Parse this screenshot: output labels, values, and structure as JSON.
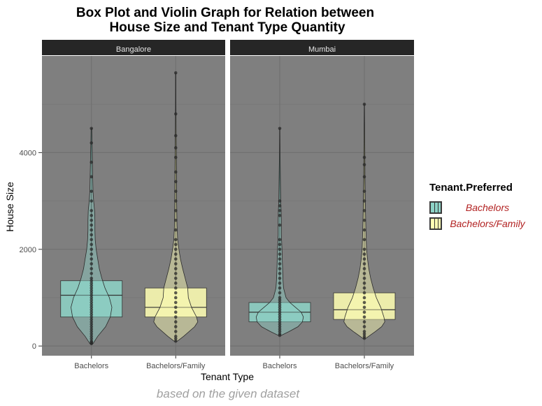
{
  "title_line1": "Box Plot and Violin Graph for Relation between",
  "title_line2": "House Size and Tenant Type Quantity",
  "caption": "based on the given dataset",
  "legend": {
    "title": "Tenant.Preferred",
    "items": [
      {
        "label": "Bachelors",
        "color": "#8dd3c7"
      },
      {
        "label": "Bachelors/Family",
        "color": "#ffffb3"
      }
    ]
  },
  "chart_data": {
    "type": "box+violin",
    "title": "Box Plot and Violin Graph for Relation between House Size and Tenant Type Quantity",
    "xlabel": "Tenant Type",
    "ylabel": "House Size",
    "ylim": [
      -200,
      6000
    ],
    "yticks": [
      0,
      2000,
      4000
    ],
    "categories": [
      "Bachelors",
      "Bachelors/Family"
    ],
    "panel_background": "#7f7f7f",
    "strip_background": "#262626",
    "facets": [
      {
        "name": "Bangalore",
        "groups": [
          {
            "category": "Bachelors",
            "color": "#8dd3c7",
            "box": {
              "q1": 600,
              "median": 1050,
              "q3": 1350,
              "whisker_low": 50,
              "whisker_high": 4500
            },
            "density": [
              [
                50,
                0.05
              ],
              [
                200,
                0.2
              ],
              [
                400,
                0.45
              ],
              [
                600,
                0.6
              ],
              [
                800,
                0.65
              ],
              [
                1000,
                0.57
              ],
              [
                1200,
                0.43
              ],
              [
                1400,
                0.33
              ],
              [
                1600,
                0.25
              ],
              [
                1800,
                0.2
              ],
              [
                2000,
                0.15
              ],
              [
                2200,
                0.12
              ],
              [
                2400,
                0.11
              ],
              [
                2600,
                0.11
              ],
              [
                2800,
                0.1
              ],
              [
                3000,
                0.07
              ],
              [
                3200,
                0.05
              ],
              [
                3500,
                0.04
              ],
              [
                4000,
                0.025
              ],
              [
                4500,
                0.01
              ]
            ],
            "points": [
              50,
              60,
              80,
              100,
              150,
              200,
              250,
              300,
              350,
              400,
              450,
              500,
              550,
              600,
              650,
              700,
              750,
              800,
              850,
              900,
              950,
              1000,
              1050,
              1100,
              1150,
              1200,
              1250,
              1300,
              1350,
              1400,
              1500,
              1600,
              1700,
              1800,
              1900,
              2000,
              2100,
              2200,
              2300,
              2400,
              2500,
              2600,
              2700,
              2800,
              3000,
              3200,
              3500,
              3800,
              4200,
              4500
            ]
          },
          {
            "category": "Bachelors/Family",
            "color": "#ffffb3",
            "box": {
              "q1": 600,
              "median": 800,
              "q3": 1200,
              "whisker_low": 100,
              "whisker_high": 5650
            },
            "density": [
              [
                100,
                0.05
              ],
              [
                200,
                0.25
              ],
              [
                400,
                0.6
              ],
              [
                500,
                0.7
              ],
              [
                600,
                0.66
              ],
              [
                800,
                0.5
              ],
              [
                1000,
                0.4
              ],
              [
                1200,
                0.38
              ],
              [
                1400,
                0.3
              ],
              [
                1600,
                0.22
              ],
              [
                1800,
                0.15
              ],
              [
                2000,
                0.1
              ],
              [
                2200,
                0.06
              ],
              [
                2500,
                0.04
              ],
              [
                3000,
                0.03
              ],
              [
                3500,
                0.025
              ],
              [
                4000,
                0.02
              ],
              [
                4500,
                0.012
              ],
              [
                5000,
                0.008
              ],
              [
                5650,
                0.004
              ]
            ],
            "points": [
              100,
              150,
              200,
              300,
              400,
              500,
              600,
              700,
              800,
              900,
              1000,
              1100,
              1200,
              1300,
              1400,
              1500,
              1600,
              1700,
              1800,
              1900,
              2000,
              2100,
              2200,
              2400,
              2600,
              2800,
              3000,
              3200,
              3400,
              3600,
              3900,
              4100,
              4350,
              4800,
              5650
            ]
          }
        ]
      },
      {
        "name": "Mumbai",
        "groups": [
          {
            "category": "Bachelors",
            "color": "#8dd3c7",
            "box": {
              "q1": 500,
              "median": 700,
              "q3": 900,
              "whisker_low": 220,
              "whisker_high": 4500
            },
            "density": [
              [
                220,
                0.05
              ],
              [
                300,
                0.3
              ],
              [
                400,
                0.58
              ],
              [
                500,
                0.72
              ],
              [
                600,
                0.75
              ],
              [
                700,
                0.68
              ],
              [
                800,
                0.5
              ],
              [
                900,
                0.32
              ],
              [
                1000,
                0.2
              ],
              [
                1200,
                0.12
              ],
              [
                1400,
                0.1
              ],
              [
                1600,
                0.09
              ],
              [
                1800,
                0.08
              ],
              [
                2000,
                0.07
              ],
              [
                2300,
                0.05
              ],
              [
                2600,
                0.05
              ],
              [
                2800,
                0.045
              ],
              [
                3000,
                0.03
              ],
              [
                3500,
                0.02
              ],
              [
                4000,
                0.01
              ],
              [
                4500,
                0.005
              ]
            ],
            "points": [
              220,
              250,
              300,
              350,
              400,
              450,
              500,
              550,
              600,
              650,
              700,
              750,
              800,
              850,
              900,
              950,
              1000,
              1100,
              1200,
              1300,
              1400,
              1500,
              1600,
              1700,
              1800,
              1900,
              2000,
              2100,
              2200,
              2500,
              2700,
              2800,
              2900,
              3000,
              4500
            ]
          },
          {
            "category": "Bachelors/Family",
            "color": "#ffffb3",
            "box": {
              "q1": 550,
              "median": 750,
              "q3": 1100,
              "whisker_low": 160,
              "whisker_high": 5000
            },
            "density": [
              [
                160,
                0.05
              ],
              [
                300,
                0.35
              ],
              [
                400,
                0.55
              ],
              [
                500,
                0.65
              ],
              [
                600,
                0.62
              ],
              [
                800,
                0.52
              ],
              [
                1000,
                0.38
              ],
              [
                1200,
                0.28
              ],
              [
                1400,
                0.2
              ],
              [
                1600,
                0.14
              ],
              [
                1800,
                0.1
              ],
              [
                2000,
                0.07
              ],
              [
                2400,
                0.05
              ],
              [
                3000,
                0.03
              ],
              [
                3500,
                0.02
              ],
              [
                4000,
                0.015
              ],
              [
                5000,
                0.005
              ]
            ],
            "points": [
              160,
              200,
              250,
              300,
              400,
              500,
              600,
              700,
              800,
              900,
              1000,
              1100,
              1200,
              1300,
              1400,
              1500,
              1600,
              1700,
              1800,
              1900,
              2000,
              2200,
              2400,
              2600,
              2800,
              3000,
              3200,
              3500,
              3750,
              3900,
              5000
            ]
          }
        ]
      }
    ]
  }
}
